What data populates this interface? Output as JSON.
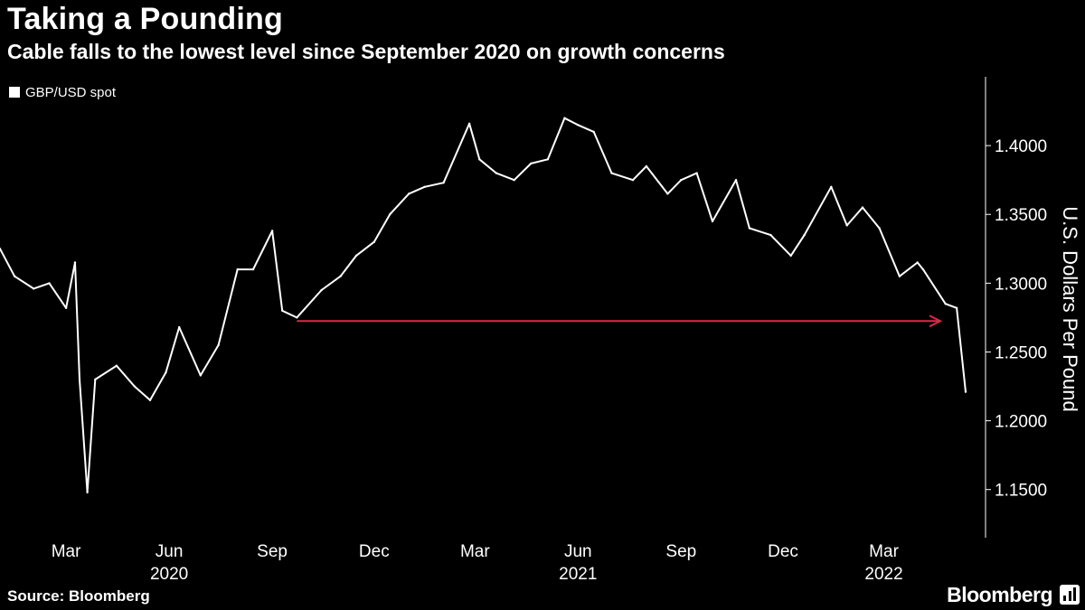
{
  "header": {
    "title": "Taking a Pounding",
    "subtitle": "Cable falls to the lowest level since September 2020 on growth concerns"
  },
  "footer": {
    "source": "Source: Bloomberg",
    "brand": "Bloomberg"
  },
  "colors": {
    "background": "#000000",
    "text": "#ffffff",
    "series": "#ffffff",
    "arrow": "#e0254a"
  },
  "chart_data": {
    "type": "line",
    "title": "Taking a Pounding",
    "subtitle": "Cable falls to the lowest level since September 2020 on growth concerns",
    "ylabel": "U.S. Dollars Per Pound",
    "ylim": [
      1.115,
      1.45
    ],
    "y_axis_side": "right",
    "y_ticks": [
      "1.4000",
      "1.3500",
      "1.3000",
      "1.2500",
      "1.2000",
      "1.1500"
    ],
    "y_tick_values": [
      1.4,
      1.35,
      1.3,
      1.25,
      1.2,
      1.15
    ],
    "x_range": [
      "2020-01-02",
      "2022-05-13"
    ],
    "x_ticks": [
      {
        "label": "Mar",
        "date": "2020-03-01"
      },
      {
        "label": "Jun",
        "date": "2020-06-01"
      },
      {
        "label": "Sep",
        "date": "2020-09-01"
      },
      {
        "label": "Dec",
        "date": "2020-12-01"
      },
      {
        "label": "Mar",
        "date": "2021-03-01"
      },
      {
        "label": "Jun",
        "date": "2021-06-01"
      },
      {
        "label": "Sep",
        "date": "2021-09-01"
      },
      {
        "label": "Dec",
        "date": "2021-12-01"
      },
      {
        "label": "Mar",
        "date": "2022-03-01"
      }
    ],
    "year_labels": [
      {
        "label": "2020",
        "date": "2020-06-01"
      },
      {
        "label": "2021",
        "date": "2021-06-01"
      },
      {
        "label": "2022",
        "date": "2022-03-01"
      }
    ],
    "grid": false,
    "legend": {
      "position": "top-left",
      "entries": [
        "GBP/USD spot"
      ]
    },
    "series": [
      {
        "name": "GBP/USD spot",
        "x": [
          "2020-01-02",
          "2020-01-15",
          "2020-02-01",
          "2020-02-15",
          "2020-03-01",
          "2020-03-09",
          "2020-03-13",
          "2020-03-20",
          "2020-03-27",
          "2020-04-15",
          "2020-05-01",
          "2020-05-15",
          "2020-05-29",
          "2020-06-10",
          "2020-06-29",
          "2020-07-15",
          "2020-08-01",
          "2020-08-15",
          "2020-09-01",
          "2020-09-10",
          "2020-09-23",
          "2020-10-15",
          "2020-11-01",
          "2020-11-15",
          "2020-12-01",
          "2020-12-15",
          "2021-01-01",
          "2021-01-15",
          "2021-02-01",
          "2021-02-24",
          "2021-03-05",
          "2021-03-20",
          "2021-04-05",
          "2021-04-20",
          "2021-05-05",
          "2021-05-20",
          "2021-06-01",
          "2021-06-15",
          "2021-07-01",
          "2021-07-20",
          "2021-08-01",
          "2021-08-20",
          "2021-09-01",
          "2021-09-15",
          "2021-09-29",
          "2021-10-20",
          "2021-11-01",
          "2021-11-20",
          "2021-12-08",
          "2021-12-20",
          "2022-01-13",
          "2022-01-27",
          "2022-02-10",
          "2022-02-25",
          "2022-03-15",
          "2022-03-31",
          "2022-04-05",
          "2022-04-25",
          "2022-05-05",
          "2022-05-13"
        ],
        "values": [
          1.325,
          1.305,
          1.296,
          1.3,
          1.282,
          1.315,
          1.23,
          1.148,
          1.23,
          1.24,
          1.225,
          1.215,
          1.235,
          1.268,
          1.233,
          1.255,
          1.31,
          1.31,
          1.338,
          1.28,
          1.275,
          1.295,
          1.305,
          1.32,
          1.33,
          1.35,
          1.365,
          1.37,
          1.373,
          1.416,
          1.39,
          1.38,
          1.375,
          1.387,
          1.39,
          1.42,
          1.415,
          1.41,
          1.38,
          1.375,
          1.385,
          1.365,
          1.375,
          1.38,
          1.345,
          1.375,
          1.34,
          1.335,
          1.32,
          1.335,
          1.37,
          1.342,
          1.355,
          1.34,
          1.305,
          1.315,
          1.31,
          1.285,
          1.282,
          1.221
        ]
      }
    ],
    "annotations": [
      {
        "type": "arrow",
        "from": "2020-09-23",
        "to": "2022-05-13",
        "y": 1.2725
      }
    ]
  }
}
